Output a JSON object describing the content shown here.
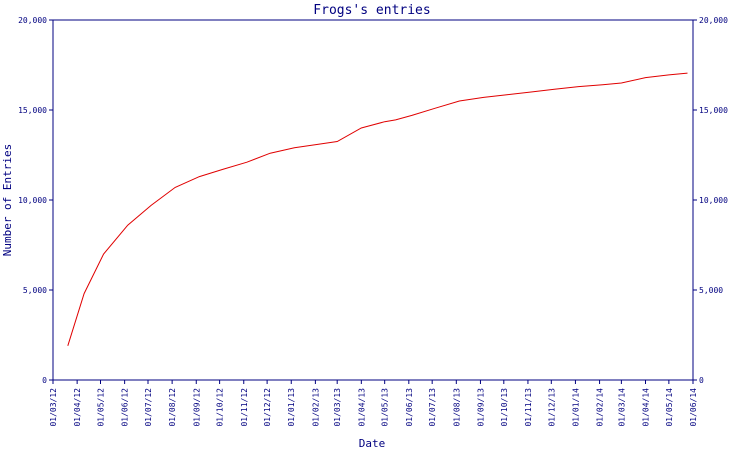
{
  "chart_data": {
    "type": "line",
    "title": "Frogs's entries",
    "xlabel": "Date",
    "ylabel": "Number of Entries",
    "ylim": [
      0,
      20000
    ],
    "y_ticks": [
      {
        "value": 0,
        "label": "0"
      },
      {
        "value": 5000,
        "label": "5,000"
      },
      {
        "value": 10000,
        "label": "10,000"
      },
      {
        "value": 15000,
        "label": "15,000"
      },
      {
        "value": 20000,
        "label": "20,000"
      }
    ],
    "x_ticks": [
      "01/03/12",
      "01/04/12",
      "01/05/12",
      "01/06/12",
      "01/07/12",
      "01/08/12",
      "01/09/12",
      "01/10/12",
      "01/11/12",
      "01/12/12",
      "01/01/13",
      "01/02/13",
      "01/03/13",
      "01/04/13",
      "01/05/13",
      "01/06/13",
      "01/07/13",
      "01/08/13",
      "01/09/13",
      "01/10/13",
      "01/11/13",
      "01/12/13",
      "01/01/14",
      "01/02/14",
      "01/03/14",
      "01/04/14",
      "01/05/14",
      "01/06/14"
    ],
    "grid": false,
    "colors": {
      "axis": "#000080",
      "series": "#e00000"
    },
    "series": [
      {
        "points": [
          [
            "2012-03-20",
            1900
          ],
          [
            "2012-04-10",
            4800
          ],
          [
            "2012-05-05",
            7000
          ],
          [
            "2012-06-05",
            8600
          ],
          [
            "2012-07-05",
            9700
          ],
          [
            "2012-08-05",
            10700
          ],
          [
            "2012-09-05",
            11300
          ],
          [
            "2012-10-05",
            11700
          ],
          [
            "2012-11-05",
            12100
          ],
          [
            "2012-12-05",
            12600
          ],
          [
            "2013-01-05",
            12900
          ],
          [
            "2013-02-05",
            13100
          ],
          [
            "2013-03-01",
            13250
          ],
          [
            "2013-04-01",
            14000
          ],
          [
            "2013-05-01",
            14350
          ],
          [
            "2013-05-15",
            14450
          ],
          [
            "2013-06-05",
            14700
          ],
          [
            "2013-07-05",
            15100
          ],
          [
            "2013-08-05",
            15500
          ],
          [
            "2013-09-05",
            15700
          ],
          [
            "2013-10-05",
            15850
          ],
          [
            "2013-11-05",
            16000
          ],
          [
            "2013-12-05",
            16150
          ],
          [
            "2014-01-05",
            16300
          ],
          [
            "2014-02-05",
            16400
          ],
          [
            "2014-03-01",
            16500
          ],
          [
            "2014-04-01",
            16800
          ],
          [
            "2014-05-01",
            16950
          ],
          [
            "2014-05-25",
            17050
          ]
        ]
      }
    ]
  }
}
